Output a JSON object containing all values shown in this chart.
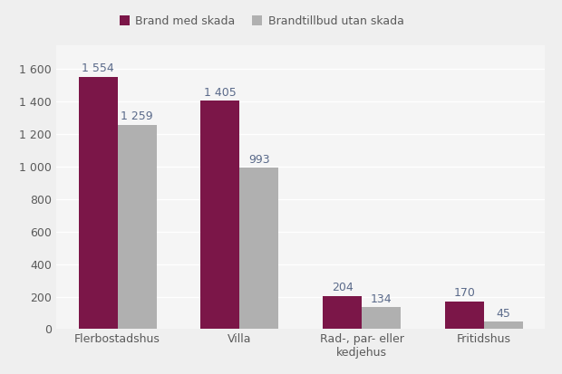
{
  "categories": [
    "Flerbostadshus",
    "Villa",
    "Rad-, par- eller\nkedjehus",
    "Fritidshus"
  ],
  "brand_med_skada": [
    1554,
    1405,
    204,
    170
  ],
  "brandtillbud_utan_skada": [
    1259,
    993,
    134,
    45
  ],
  "bar_color_brand": "#7B1648",
  "bar_color_tillbud": "#B0B0B0",
  "legend_label_1": "Brand med skada",
  "legend_label_2": "Brandtillbud utan skada",
  "ylim": [
    0,
    1750
  ],
  "yticks": [
    0,
    200,
    400,
    600,
    800,
    1000,
    1200,
    1400,
    1600
  ],
  "background_color": "#EFEFEF",
  "plot_bg_color": "#F5F5F5",
  "bar_width": 0.32,
  "font_color": "#5A5A5A",
  "label_color": "#5A6A8A",
  "grid_color": "#FFFFFF"
}
